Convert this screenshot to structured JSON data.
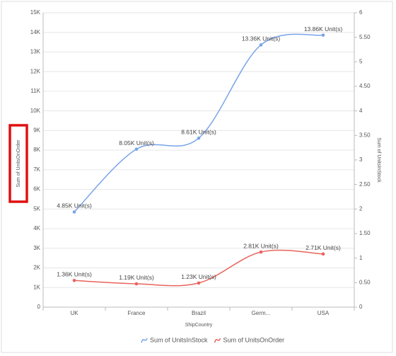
{
  "chart_data": {
    "type": "line",
    "x_label": "ShipCountry",
    "y_label": "Sum of UnitsOnOrder",
    "y2_label": "Sum of UnitsInStock",
    "categories": [
      "UK",
      "France",
      "Brazil",
      "Germ...",
      "USA"
    ],
    "series": [
      {
        "name": "Sum of UnitsInStock",
        "color": "#78a4e8",
        "values": [
          4850,
          8050,
          8610,
          13360,
          13860
        ],
        "value_labels": [
          "4.85K Unit(s)",
          "8.05K Unit(s)",
          "8.61K Unit(s)",
          "13.36K Unit(s)",
          "13.86K Unit(s)"
        ]
      },
      {
        "name": "Sum of UnitsOnOrder",
        "color": "#e8635c",
        "values": [
          1360,
          1190,
          1230,
          2810,
          2710
        ],
        "value_labels": [
          "1.36K Unit(s)",
          "1.19K Unit(s)",
          "1.23K Unit(s)",
          "2.81K Unit(s)",
          "2.71K Unit(s)"
        ]
      }
    ],
    "ylim": [
      0,
      15000
    ],
    "yticks": [
      0,
      {
        "value": 1000,
        "label": "1K"
      },
      {
        "value": 2000,
        "label": "2K"
      },
      {
        "value": 3000,
        "label": "3K"
      },
      {
        "value": 4000,
        "label": "4K"
      },
      {
        "value": 5000,
        "label": "5K"
      },
      {
        "value": 6000,
        "label": "6K"
      },
      {
        "value": 7000,
        "label": "7K"
      },
      {
        "value": 8000,
        "label": "8K"
      },
      {
        "value": 9000,
        "label": "9K"
      },
      {
        "value": 10000,
        "label": "10K"
      },
      {
        "value": 11000,
        "label": "11K"
      },
      {
        "value": 12000,
        "label": "12K"
      },
      {
        "value": 13000,
        "label": "13K"
      },
      {
        "value": 14000,
        "label": "14K"
      },
      {
        "value": 15000,
        "label": "15K"
      }
    ],
    "y2lim": [
      0,
      6
    ],
    "y2ticks": [
      0,
      {
        "value": 0.5,
        "label": "0.50"
      },
      1,
      {
        "value": 1.5,
        "label": "1.50"
      },
      2,
      {
        "value": 2.5,
        "label": "2.50"
      },
      3,
      {
        "value": 3.5,
        "label": "3.50"
      },
      4,
      {
        "value": 4.5,
        "label": "4.50"
      },
      5,
      {
        "value": 5.5,
        "label": "5.50"
      },
      6
    ],
    "grid": true,
    "legend": "bottom"
  }
}
